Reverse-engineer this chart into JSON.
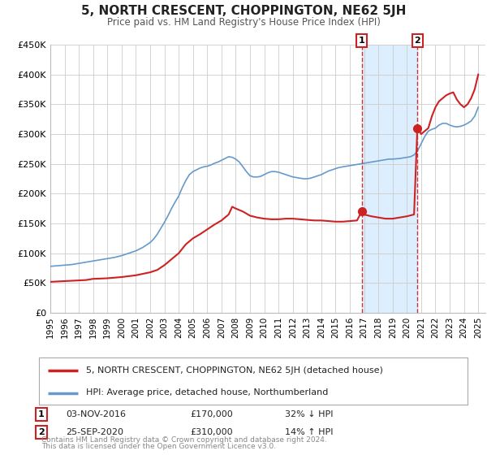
{
  "title": "5, NORTH CRESCENT, CHOPPINGTON, NE62 5JH",
  "subtitle": "Price paid vs. HM Land Registry's House Price Index (HPI)",
  "background_color": "#ffffff",
  "plot_bg_color": "#ffffff",
  "grid_color": "#cccccc",
  "hpi_color": "#6699cc",
  "price_color": "#cc2222",
  "marker_color": "#cc2222",
  "dashed_line_color": "#cc3333",
  "shade_color": "#ddeeff",
  "ylim": [
    0,
    450000
  ],
  "yticks": [
    0,
    50000,
    100000,
    150000,
    200000,
    250000,
    300000,
    350000,
    400000,
    450000
  ],
  "ytick_labels": [
    "£0",
    "£50K",
    "£100K",
    "£150K",
    "£200K",
    "£250K",
    "£300K",
    "£350K",
    "£400K",
    "£450K"
  ],
  "xlim_start": 1995.0,
  "xlim_end": 2025.5,
  "xtick_years": [
    1995,
    1996,
    1997,
    1998,
    1999,
    2000,
    2001,
    2002,
    2003,
    2004,
    2005,
    2006,
    2007,
    2008,
    2009,
    2010,
    2011,
    2012,
    2013,
    2014,
    2015,
    2016,
    2017,
    2018,
    2019,
    2020,
    2021,
    2022,
    2023,
    2024,
    2025
  ],
  "annotation1": {
    "label": "1",
    "x": 2016.83,
    "price": 170000,
    "date": "03-NOV-2016",
    "amount": "£170,000",
    "pct": "32% ↓ HPI"
  },
  "annotation2": {
    "label": "2",
    "x": 2020.73,
    "price": 310000,
    "date": "25-SEP-2020",
    "amount": "£310,000",
    "pct": "14% ↑ HPI"
  },
  "legend_line1": "5, NORTH CRESCENT, CHOPPINGTON, NE62 5JH (detached house)",
  "legend_line2": "HPI: Average price, detached house, Northumberland",
  "footer1": "Contains HM Land Registry data © Crown copyright and database right 2024.",
  "footer2": "This data is licensed under the Open Government Licence v3.0.",
  "hpi_data": [
    [
      1995.0,
      78000
    ],
    [
      1995.25,
      78500
    ],
    [
      1995.5,
      79000
    ],
    [
      1995.75,
      79500
    ],
    [
      1996.0,
      80000
    ],
    [
      1996.25,
      80500
    ],
    [
      1996.5,
      81000
    ],
    [
      1996.75,
      82000
    ],
    [
      1997.0,
      83000
    ],
    [
      1997.25,
      84000
    ],
    [
      1997.5,
      85000
    ],
    [
      1997.75,
      86000
    ],
    [
      1998.0,
      87000
    ],
    [
      1998.25,
      88000
    ],
    [
      1998.5,
      89000
    ],
    [
      1998.75,
      90000
    ],
    [
      1999.0,
      91000
    ],
    [
      1999.25,
      92000
    ],
    [
      1999.5,
      93000
    ],
    [
      1999.75,
      94500
    ],
    [
      2000.0,
      96000
    ],
    [
      2000.25,
      98000
    ],
    [
      2000.5,
      100000
    ],
    [
      2000.75,
      102000
    ],
    [
      2001.0,
      104000
    ],
    [
      2001.25,
      107000
    ],
    [
      2001.5,
      110000
    ],
    [
      2001.75,
      114000
    ],
    [
      2002.0,
      118000
    ],
    [
      2002.25,
      124000
    ],
    [
      2002.5,
      132000
    ],
    [
      2002.75,
      142000
    ],
    [
      2003.0,
      152000
    ],
    [
      2003.25,
      163000
    ],
    [
      2003.5,
      175000
    ],
    [
      2003.75,
      186000
    ],
    [
      2004.0,
      196000
    ],
    [
      2004.25,
      210000
    ],
    [
      2004.5,
      222000
    ],
    [
      2004.75,
      232000
    ],
    [
      2005.0,
      237000
    ],
    [
      2005.25,
      240000
    ],
    [
      2005.5,
      243000
    ],
    [
      2005.75,
      245000
    ],
    [
      2006.0,
      246000
    ],
    [
      2006.25,
      248000
    ],
    [
      2006.5,
      251000
    ],
    [
      2006.75,
      253000
    ],
    [
      2007.0,
      256000
    ],
    [
      2007.25,
      259000
    ],
    [
      2007.5,
      262000
    ],
    [
      2007.75,
      261000
    ],
    [
      2008.0,
      258000
    ],
    [
      2008.25,
      253000
    ],
    [
      2008.5,
      245000
    ],
    [
      2008.75,
      237000
    ],
    [
      2009.0,
      230000
    ],
    [
      2009.25,
      228000
    ],
    [
      2009.5,
      228000
    ],
    [
      2009.75,
      229000
    ],
    [
      2010.0,
      232000
    ],
    [
      2010.25,
      235000
    ],
    [
      2010.5,
      237000
    ],
    [
      2010.75,
      237000
    ],
    [
      2011.0,
      236000
    ],
    [
      2011.25,
      234000
    ],
    [
      2011.5,
      232000
    ],
    [
      2011.75,
      230000
    ],
    [
      2012.0,
      228000
    ],
    [
      2012.25,
      227000
    ],
    [
      2012.5,
      226000
    ],
    [
      2012.75,
      225000
    ],
    [
      2013.0,
      225000
    ],
    [
      2013.25,
      226000
    ],
    [
      2013.5,
      228000
    ],
    [
      2013.75,
      230000
    ],
    [
      2014.0,
      232000
    ],
    [
      2014.25,
      235000
    ],
    [
      2014.5,
      238000
    ],
    [
      2014.75,
      240000
    ],
    [
      2015.0,
      242000
    ],
    [
      2015.25,
      244000
    ],
    [
      2015.5,
      245000
    ],
    [
      2015.75,
      246000
    ],
    [
      2016.0,
      247000
    ],
    [
      2016.25,
      248000
    ],
    [
      2016.5,
      249000
    ],
    [
      2016.75,
      250000
    ],
    [
      2017.0,
      251000
    ],
    [
      2017.25,
      252000
    ],
    [
      2017.5,
      253000
    ],
    [
      2017.75,
      254000
    ],
    [
      2018.0,
      255000
    ],
    [
      2018.25,
      256000
    ],
    [
      2018.5,
      257000
    ],
    [
      2018.75,
      258000
    ],
    [
      2019.0,
      258000
    ],
    [
      2019.25,
      258500
    ],
    [
      2019.5,
      259000
    ],
    [
      2019.75,
      260000
    ],
    [
      2020.0,
      261000
    ],
    [
      2020.25,
      262000
    ],
    [
      2020.5,
      265000
    ],
    [
      2020.75,
      272000
    ],
    [
      2021.0,
      284000
    ],
    [
      2021.25,
      296000
    ],
    [
      2021.5,
      305000
    ],
    [
      2021.75,
      308000
    ],
    [
      2022.0,
      310000
    ],
    [
      2022.25,
      315000
    ],
    [
      2022.5,
      318000
    ],
    [
      2022.75,
      318000
    ],
    [
      2023.0,
      315000
    ],
    [
      2023.25,
      313000
    ],
    [
      2023.5,
      312000
    ],
    [
      2023.75,
      313000
    ],
    [
      2024.0,
      315000
    ],
    [
      2024.25,
      318000
    ],
    [
      2024.5,
      322000
    ],
    [
      2024.75,
      330000
    ],
    [
      2025.0,
      345000
    ]
  ],
  "price_data": [
    [
      1995.0,
      52000
    ],
    [
      1997.5,
      55000
    ],
    [
      1998.0,
      57000
    ],
    [
      1999.0,
      58000
    ],
    [
      2000.0,
      60000
    ],
    [
      2001.0,
      63000
    ],
    [
      2002.0,
      68000
    ],
    [
      2002.5,
      72000
    ],
    [
      2003.0,
      80000
    ],
    [
      2003.5,
      90000
    ],
    [
      2004.0,
      100000
    ],
    [
      2004.5,
      115000
    ],
    [
      2005.0,
      125000
    ],
    [
      2005.5,
      132000
    ],
    [
      2006.0,
      140000
    ],
    [
      2006.5,
      148000
    ],
    [
      2007.0,
      155000
    ],
    [
      2007.5,
      165000
    ],
    [
      2007.75,
      178000
    ],
    [
      2008.0,
      175000
    ],
    [
      2008.5,
      170000
    ],
    [
      2009.0,
      163000
    ],
    [
      2009.5,
      160000
    ],
    [
      2010.0,
      158000
    ],
    [
      2010.5,
      157000
    ],
    [
      2011.0,
      157000
    ],
    [
      2011.5,
      158000
    ],
    [
      2012.0,
      158000
    ],
    [
      2012.5,
      157000
    ],
    [
      2013.0,
      156000
    ],
    [
      2013.5,
      155000
    ],
    [
      2014.0,
      155000
    ],
    [
      2014.5,
      154000
    ],
    [
      2015.0,
      153000
    ],
    [
      2015.5,
      153000
    ],
    [
      2016.0,
      154000
    ],
    [
      2016.5,
      155000
    ],
    [
      2016.83,
      170000
    ],
    [
      2017.0,
      165000
    ],
    [
      2017.5,
      162000
    ],
    [
      2018.0,
      160000
    ],
    [
      2018.5,
      158000
    ],
    [
      2019.0,
      158000
    ],
    [
      2019.5,
      160000
    ],
    [
      2020.0,
      162000
    ],
    [
      2020.5,
      165000
    ],
    [
      2020.73,
      310000
    ],
    [
      2021.0,
      300000
    ],
    [
      2021.25,
      305000
    ],
    [
      2021.5,
      310000
    ],
    [
      2021.75,
      330000
    ],
    [
      2022.0,
      345000
    ],
    [
      2022.25,
      355000
    ],
    [
      2022.5,
      360000
    ],
    [
      2022.75,
      365000
    ],
    [
      2023.0,
      368000
    ],
    [
      2023.25,
      370000
    ],
    [
      2023.5,
      358000
    ],
    [
      2023.75,
      350000
    ],
    [
      2024.0,
      345000
    ],
    [
      2024.25,
      350000
    ],
    [
      2024.5,
      360000
    ],
    [
      2024.75,
      375000
    ],
    [
      2025.0,
      400000
    ]
  ]
}
